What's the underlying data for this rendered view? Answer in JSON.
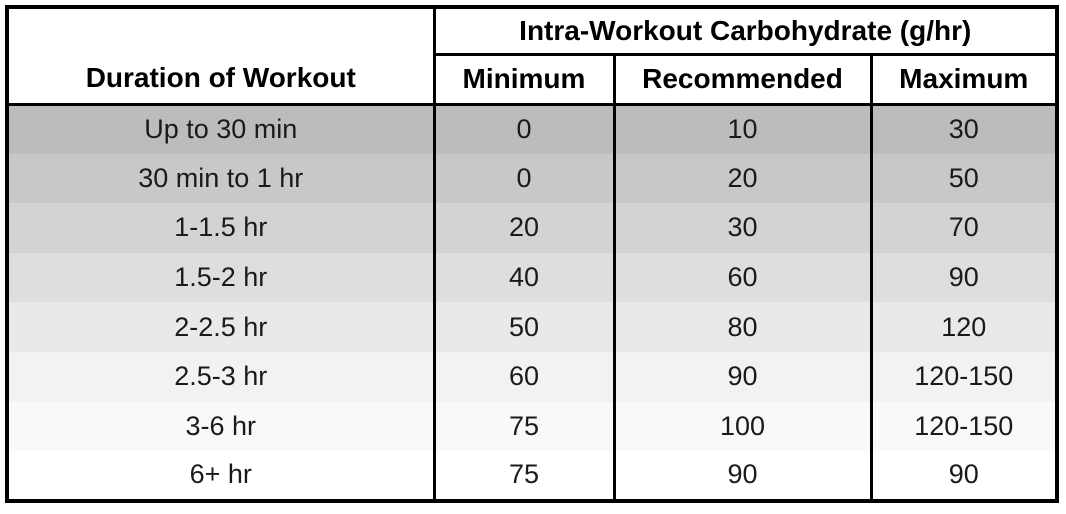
{
  "table": {
    "span_header": "Intra-Workout Carbohydrate (g/hr)",
    "duration_header": "Duration of Workout",
    "sub_headers": [
      "Minimum",
      "Recommended",
      "Maximum"
    ],
    "row_colors": [
      "#bcbcbc",
      "#c8c8c8",
      "#d3d3d3",
      "#dedede",
      "#e9e9e9",
      "#f2f2f2",
      "#f9f9f9",
      "#ffffff"
    ],
    "rows": [
      {
        "duration": "Up to 30 min",
        "minimum": "0",
        "recommended": "10",
        "maximum": "30"
      },
      {
        "duration": "30 min to 1 hr",
        "minimum": "0",
        "recommended": "20",
        "maximum": "50"
      },
      {
        "duration": "1-1.5 hr",
        "minimum": "20",
        "recommended": "30",
        "maximum": "70"
      },
      {
        "duration": "1.5-2 hr",
        "minimum": "40",
        "recommended": "60",
        "maximum": "90"
      },
      {
        "duration": "2-2.5 hr",
        "minimum": "50",
        "recommended": "80",
        "maximum": "120"
      },
      {
        "duration": "2.5-3 hr",
        "minimum": "60",
        "recommended": "90",
        "maximum": "120-150"
      },
      {
        "duration": "3-6 hr",
        "minimum": "75",
        "recommended": "100",
        "maximum": "120-150"
      },
      {
        "duration": "6+ hr",
        "minimum": "75",
        "recommended": "90",
        "maximum": "90"
      }
    ]
  },
  "colors": {
    "border": "#000000",
    "header_background": "#ffffff",
    "header_text": "#000000",
    "body_text": "#1a1a1a"
  },
  "chart_data": {
    "type": "table",
    "title": "Intra-Workout Carbohydrate (g/hr)",
    "columns": [
      "Duration of Workout",
      "Minimum",
      "Recommended",
      "Maximum"
    ],
    "rows": [
      [
        "Up to 30 min",
        "0",
        "10",
        "30"
      ],
      [
        "30 min to 1 hr",
        "0",
        "20",
        "50"
      ],
      [
        "1-1.5 hr",
        "20",
        "30",
        "70"
      ],
      [
        "1.5-2 hr",
        "40",
        "60",
        "90"
      ],
      [
        "2-2.5 hr",
        "50",
        "80",
        "120"
      ],
      [
        "2.5-3 hr",
        "60",
        "90",
        "120-150"
      ],
      [
        "3-6 hr",
        "75",
        "100",
        "120-150"
      ],
      [
        "6+ hr",
        "75",
        "90",
        "90"
      ]
    ]
  }
}
